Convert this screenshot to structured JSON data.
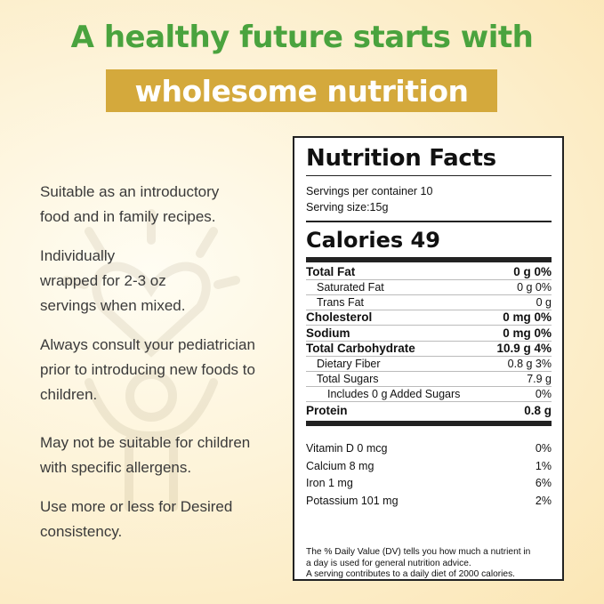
{
  "headline": {
    "line1": "A healthy future starts with",
    "line2": "wholesome nutrition"
  },
  "colors": {
    "headline_green": "#4aa33e",
    "band_gold": "#d4a93c",
    "background": "#fdf3d8"
  },
  "notes": [
    {
      "line1": "Suitable as an introductory",
      "line2": "food and in family recipes."
    },
    {
      "line1": "Individually",
      "line2": "wrapped for 2-3 oz",
      "line3": "servings when mixed."
    },
    {
      "line1": "Always consult your pediatrician",
      "line2": "prior to introducing new foods to",
      "line3": "children."
    },
    {
      "line1": "May not be suitable for children",
      "line2": "with specific allergens."
    },
    {
      "line1": "Use more or less for Desired",
      "line2": "consistency."
    }
  ],
  "nutrition": {
    "title": "Nutrition Facts",
    "servings_per_container": "Servings per container 10",
    "serving_size": "Serving size:15g",
    "calories_label": "Calories",
    "calories_value": "49",
    "rows": [
      {
        "name": "Total Fat",
        "value": "0 g 0%"
      },
      {
        "name": "Saturated Fat",
        "value": "0 g 0%"
      },
      {
        "name": "Trans Fat",
        "value": "0 g"
      },
      {
        "name": "Cholesterol",
        "value": "0 mg 0%"
      },
      {
        "name": "Sodium",
        "value": "0 mg 0%"
      },
      {
        "name": "Total Carbohydrate",
        "value": "10.9 g 4%"
      },
      {
        "name": "Dietary Fiber",
        "value": "0.8 g 3%"
      },
      {
        "name": "Total Sugars",
        "value": "7.9 g"
      },
      {
        "name": "Includes 0 g Added Sugars",
        "value": "0%"
      },
      {
        "name": "Protein",
        "value": "0.8 g"
      }
    ],
    "vitamins": [
      {
        "name": "Vitamin D 0 mcg",
        "value": "0%"
      },
      {
        "name": "Calcium 8 mg",
        "value": "1%"
      },
      {
        "name": "Iron 1 mg",
        "value": "6%"
      },
      {
        "name": "Potassium 101 mg",
        "value": "2%"
      }
    ],
    "footnote": {
      "line1": "The % Daily Value (DV) tells you how much a nutrient in",
      "line2": "a day is used for general nutrition advice.",
      "line3": "A serving contributes to a daily diet of 2000 calories."
    }
  }
}
